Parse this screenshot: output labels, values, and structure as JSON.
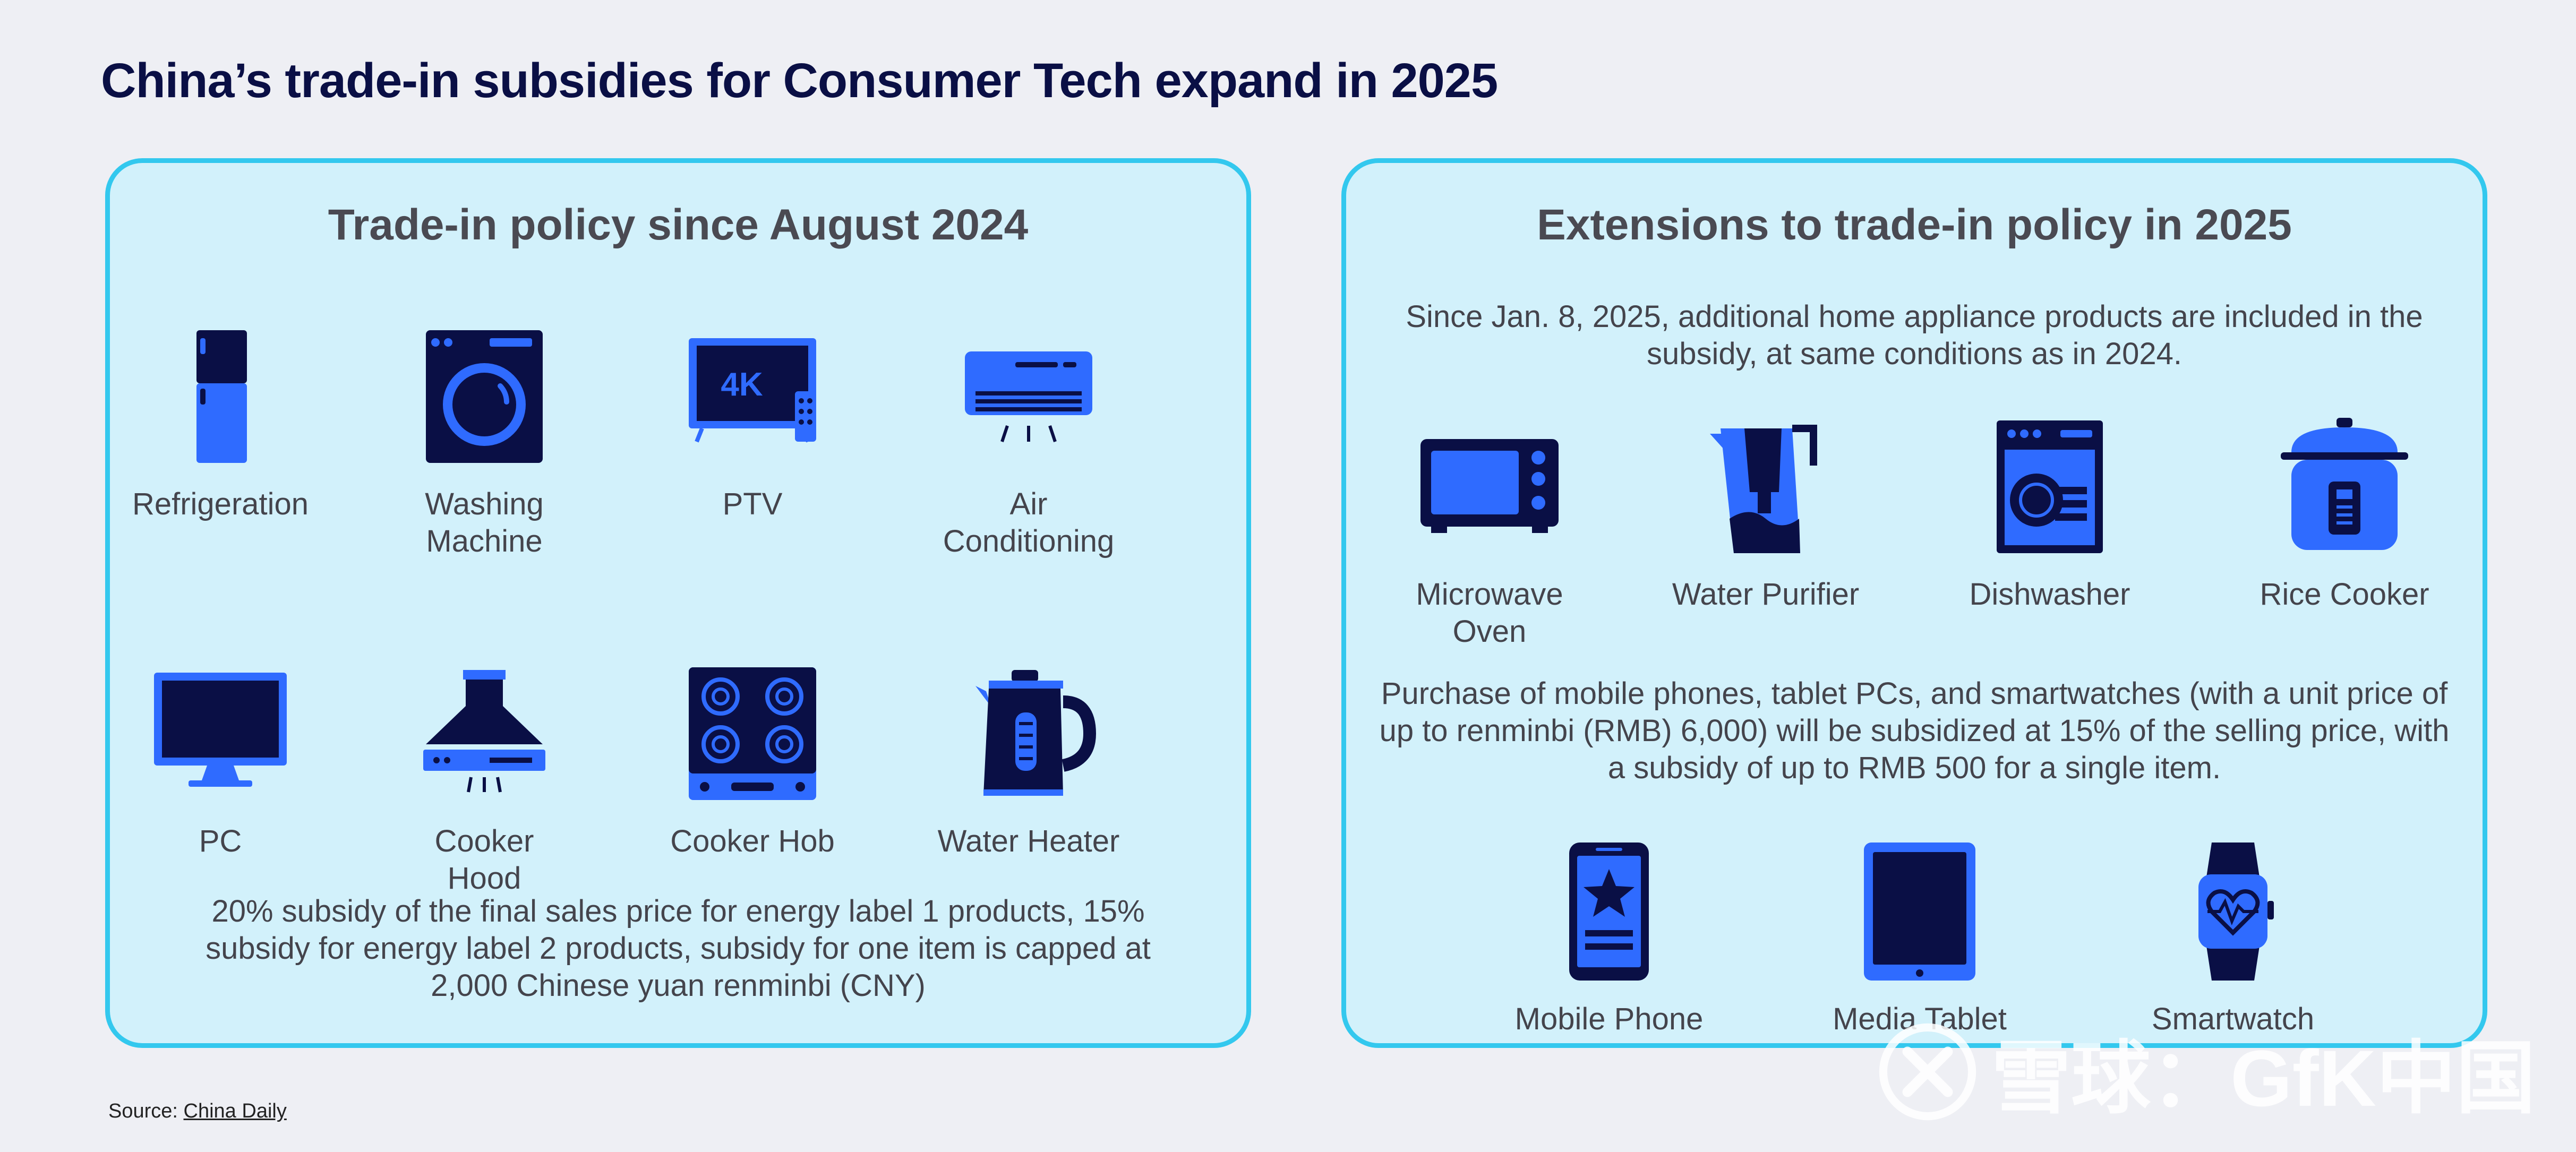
{
  "title": "China’s trade-in subsidies for Consumer Tech expand in 2025",
  "left_panel": {
    "heading": "Trade-in policy since August 2024",
    "items": [
      {
        "label": "Refrigeration",
        "icon": "refrigerator-icon"
      },
      {
        "label": "Washing Machine",
        "icon": "washing-machine-icon"
      },
      {
        "label": "PTV",
        "icon": "tv-4k-icon",
        "badge": "4K"
      },
      {
        "label": "Air Conditioning",
        "icon": "air-conditioner-icon"
      },
      {
        "label": "PC",
        "icon": "monitor-icon"
      },
      {
        "label": "Cooker Hood",
        "icon": "cooker-hood-icon"
      },
      {
        "label": "Cooker Hob",
        "icon": "cooker-hob-icon"
      },
      {
        "label": "Water Heater",
        "icon": "kettle-icon"
      }
    ],
    "note": "20% subsidy of the final sales price for energy label 1 products, 15% subsidy for energy label 2 products, subsidy for one item is capped at 2,000 Chinese yuan renminbi (CNY)"
  },
  "right_panel": {
    "heading": "Extensions to trade-in policy in 2025",
    "intro": "Since Jan. 8, 2025, additional home appliance products are included in the subsidy, at same conditions as in 2024.",
    "appliances": [
      {
        "label": "Microwave Oven",
        "icon": "microwave-icon"
      },
      {
        "label": "Water Purifier",
        "icon": "water-pitcher-icon"
      },
      {
        "label": "Dishwasher",
        "icon": "dishwasher-icon"
      },
      {
        "label": "Rice Cooker",
        "icon": "rice-cooker-icon"
      }
    ],
    "mobile_note": "Purchase of mobile phones, tablet PCs, and smartwatches (with a unit price of up to renminbi (RMB) 6,000) will be subsidized at 15% of the selling price, with a subsidy of up to RMB 500 for a single item.",
    "devices": [
      {
        "label": "Mobile Phone",
        "icon": "mobile-phone-icon"
      },
      {
        "label": "Media Tablet",
        "icon": "tablet-icon"
      },
      {
        "label": "Smartwatch",
        "icon": "smartwatch-icon"
      }
    ]
  },
  "source": {
    "prefix": "Source: ",
    "link": "China Daily"
  },
  "watermark": "雪球：GfK中国",
  "colors": {
    "background": "#eeeff4",
    "panel": "#d2f1fb",
    "panel_border": "#33c8ee",
    "icon_blue": "#2f6bff",
    "icon_navy": "#0a0f45",
    "title": "#0a0f45"
  }
}
